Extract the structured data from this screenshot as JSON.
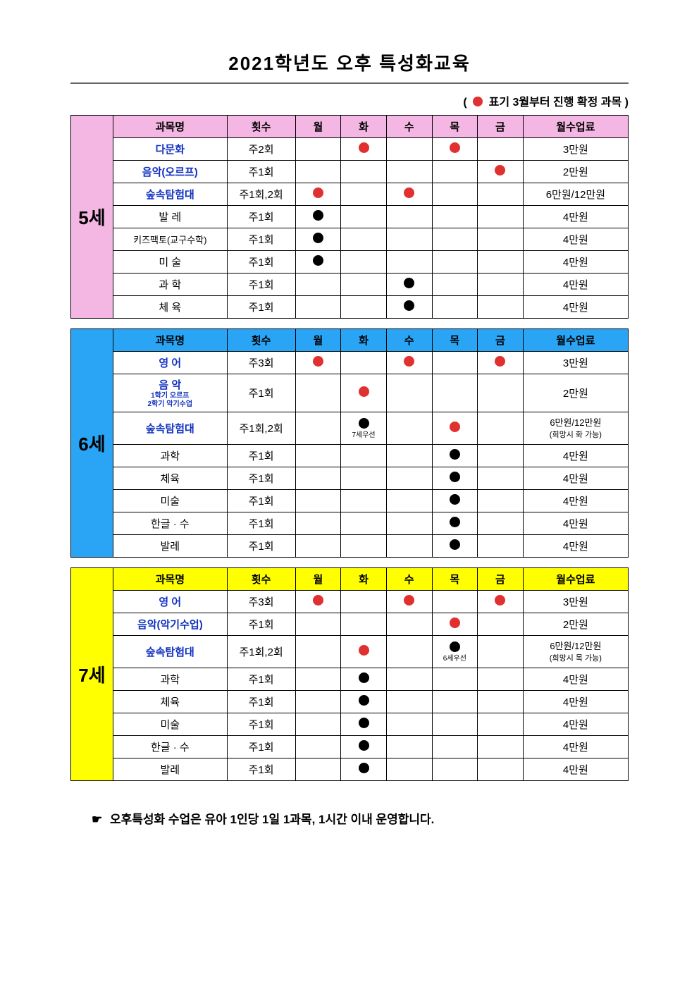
{
  "title": "2021학년도 오후 특성화교육",
  "legend_prefix": "( ",
  "legend_text": " 표기 3월부터 진행 확정 과목 )",
  "colors": {
    "red_dot": "#e03030",
    "black_dot": "#000000",
    "age5_header": "#f4b6e2",
    "age5_side": "#f4b6e2",
    "age6_header": "#2aa5f5",
    "age6_side": "#2aa5f5",
    "age7_header": "#ffff00",
    "age7_side": "#ffff00",
    "subject_blue": "#1030c0"
  },
  "headers": {
    "subject": "과목명",
    "freq": "횟수",
    "mon": "월",
    "tue": "화",
    "wed": "수",
    "thu": "목",
    "fri": "금",
    "fee": "월수업료"
  },
  "blocks": [
    {
      "age": "5세",
      "side_color": "#f4b6e2",
      "header_color": "#f4b6e2",
      "rows": [
        {
          "subject": "다문화",
          "blue": true,
          "freq": "주2회",
          "days": [
            "",
            "red",
            "",
            "red",
            ""
          ],
          "fee": "3만원"
        },
        {
          "subject": "음악(오르프)",
          "blue": true,
          "freq": "주1회",
          "days": [
            "",
            "",
            "",
            "",
            "red"
          ],
          "fee": "2만원"
        },
        {
          "subject": "숲속탐험대",
          "blue": true,
          "freq": "주1회,2회",
          "days": [
            "red",
            "",
            "red",
            "",
            ""
          ],
          "fee": "6만원/12만원"
        },
        {
          "subject": "발 레",
          "blue": false,
          "freq": "주1회",
          "days": [
            "black",
            "",
            "",
            "",
            ""
          ],
          "fee": "4만원"
        },
        {
          "subject": "키즈팩토(교구수학)",
          "blue": false,
          "small": true,
          "freq": "주1회",
          "days": [
            "black",
            "",
            "",
            "",
            ""
          ],
          "fee": "4만원"
        },
        {
          "subject": "미 술",
          "blue": false,
          "freq": "주1회",
          "days": [
            "black",
            "",
            "",
            "",
            ""
          ],
          "fee": "4만원"
        },
        {
          "subject": "과 학",
          "blue": false,
          "freq": "주1회",
          "days": [
            "",
            "",
            "black",
            "",
            ""
          ],
          "fee": "4만원"
        },
        {
          "subject": "체 육",
          "blue": false,
          "freq": "주1회",
          "days": [
            "",
            "",
            "black",
            "",
            ""
          ],
          "fee": "4만원"
        }
      ]
    },
    {
      "age": "6세",
      "side_color": "#2aa5f5",
      "header_color": "#2aa5f5",
      "rows": [
        {
          "subject": "영 어",
          "blue": true,
          "freq": "주3회",
          "days": [
            "red",
            "",
            "red",
            "",
            "red"
          ],
          "fee": "3만원"
        },
        {
          "subject": "음 악",
          "sub1": "1학기 오르프",
          "sub2": "2학기 악기수업",
          "blue": true,
          "freq": "주1회",
          "days": [
            "",
            "red",
            "",
            "",
            ""
          ],
          "fee": "2만원",
          "tall": true
        },
        {
          "subject": "숲속탐험대",
          "blue": true,
          "freq": "주1회,2회",
          "days": [
            "",
            {
              "dot": "black",
              "note": "7세우선"
            },
            "",
            "red",
            ""
          ],
          "fee": "6만원/12만원",
          "fee_note": "(희망시 화 가능)",
          "tall": true
        },
        {
          "subject": "과학",
          "blue": false,
          "freq": "주1회",
          "days": [
            "",
            "",
            "",
            "black",
            ""
          ],
          "fee": "4만원"
        },
        {
          "subject": "체육",
          "blue": false,
          "freq": "주1회",
          "days": [
            "",
            "",
            "",
            "black",
            ""
          ],
          "fee": "4만원"
        },
        {
          "subject": "미술",
          "blue": false,
          "freq": "주1회",
          "days": [
            "",
            "",
            "",
            "black",
            ""
          ],
          "fee": "4만원"
        },
        {
          "subject": "한글 · 수",
          "blue": false,
          "freq": "주1회",
          "days": [
            "",
            "",
            "",
            "black",
            ""
          ],
          "fee": "4만원"
        },
        {
          "subject": "발레",
          "blue": false,
          "freq": "주1회",
          "days": [
            "",
            "",
            "",
            "black",
            ""
          ],
          "fee": "4만원"
        }
      ]
    },
    {
      "age": "7세",
      "side_color": "#ffff00",
      "header_color": "#ffff00",
      "rows": [
        {
          "subject": "영 어",
          "blue": true,
          "freq": "주3회",
          "days": [
            "red",
            "",
            "red",
            "",
            "red"
          ],
          "fee": "3만원"
        },
        {
          "subject": "음악(악기수업)",
          "blue": true,
          "freq": "주1회",
          "days": [
            "",
            "",
            "",
            "red",
            ""
          ],
          "fee": "2만원"
        },
        {
          "subject": "숲속탐험대",
          "blue": true,
          "freq": "주1회,2회",
          "days": [
            "",
            "red",
            "",
            {
              "dot": "black",
              "note": "6세우선"
            },
            ""
          ],
          "fee": "6만원/12만원",
          "fee_note": "(희망시 목 가능)",
          "tall": true
        },
        {
          "subject": "과학",
          "blue": false,
          "freq": "주1회",
          "days": [
            "",
            "black",
            "",
            "",
            ""
          ],
          "fee": "4만원"
        },
        {
          "subject": "체육",
          "blue": false,
          "freq": "주1회",
          "days": [
            "",
            "black",
            "",
            "",
            ""
          ],
          "fee": "4만원"
        },
        {
          "subject": "미술",
          "blue": false,
          "freq": "주1회",
          "days": [
            "",
            "black",
            "",
            "",
            ""
          ],
          "fee": "4만원"
        },
        {
          "subject": "한글 · 수",
          "blue": false,
          "freq": "주1회",
          "days": [
            "",
            "black",
            "",
            "",
            ""
          ],
          "fee": "4만원"
        },
        {
          "subject": "발레",
          "blue": false,
          "freq": "주1회",
          "days": [
            "",
            "black",
            "",
            "",
            ""
          ],
          "fee": "4만원"
        }
      ]
    }
  ],
  "footer_pointer": "☛",
  "footer_note": "오후특성화 수업은 유아 1인당 1일 1과목, 1시간 이내 운영합니다."
}
